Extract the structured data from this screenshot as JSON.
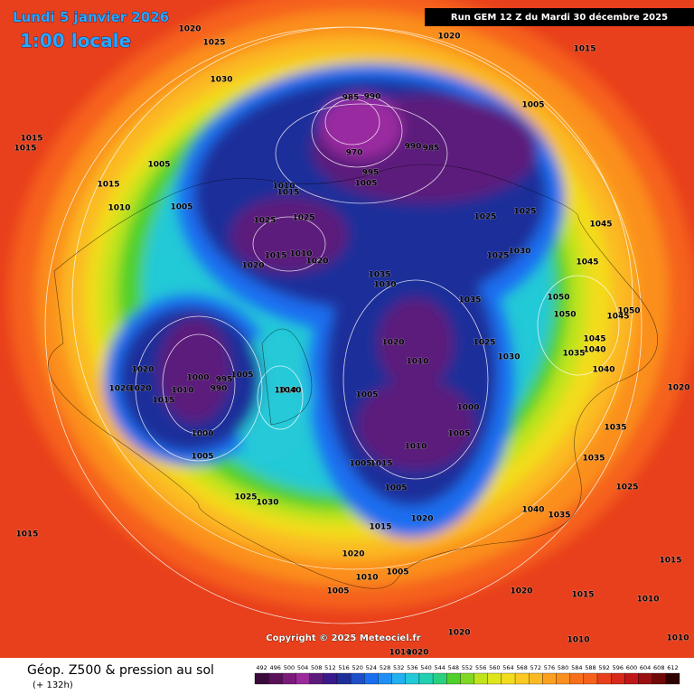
{
  "header": {
    "date": "Lundi 5 janvier 2026",
    "time": "1:00 locale",
    "run": "Run GEM 12 Z du Mardi 30 décembre 2025"
  },
  "copyright": "Copyright © 2025 Meteociel.fr",
  "footer": {
    "title": "Géop. Z500 & pression au sol",
    "lead": "(+ 132h)"
  },
  "scale": {
    "labels": [
      "492",
      "496",
      "500",
      "504",
      "508",
      "512",
      "516",
      "520",
      "524",
      "528",
      "532",
      "536",
      "540",
      "544",
      "548",
      "552",
      "556",
      "560",
      "564",
      "568",
      "572",
      "576",
      "580",
      "584",
      "588",
      "592",
      "596",
      "600",
      "604",
      "608",
      "612"
    ]
  },
  "isobars": {
    "labels": [
      "1020",
      "1025",
      "1030",
      "1020",
      "1015",
      "1015",
      "1015",
      "1005",
      "1015",
      "1010",
      "1005",
      "985",
      "990",
      "970",
      "990",
      "985",
      "995",
      "1005",
      "1010",
      "1015",
      "1025",
      "1025",
      "1015",
      "1010",
      "1020",
      "1020",
      "1005",
      "1025",
      "1025",
      "1030",
      "1025",
      "1045",
      "1045",
      "1035",
      "1030",
      "1035",
      "1050",
      "1050",
      "1045",
      "1050",
      "1045",
      "1040",
      "1035",
      "1040",
      "1025",
      "1030",
      "1020",
      "1010",
      "1020",
      "1010",
      "1000",
      "995",
      "990",
      "1005",
      "1020",
      "1020",
      "1015",
      "1005",
      "1000",
      "1010",
      "1040",
      "1005",
      "1010",
      "1000",
      "1005",
      "1005",
      "1015",
      "1005",
      "1020",
      "1015",
      "1025",
      "1030",
      "1020",
      "1035",
      "1035",
      "1025",
      "1040",
      "1035",
      "1015",
      "1020",
      "1010",
      "1005",
      "1005",
      "1020",
      "1015",
      "1010",
      "1015",
      "1020",
      "1010",
      "1010",
      "1010",
      "1020"
    ]
  }
}
